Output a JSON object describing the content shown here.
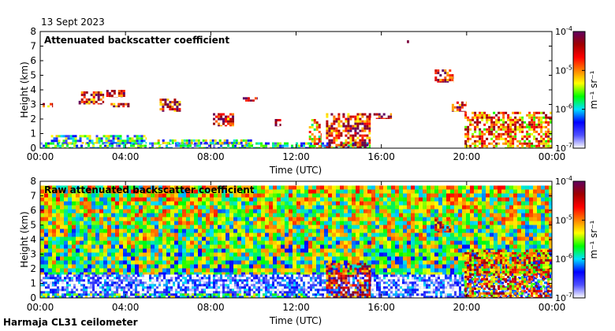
{
  "header": {
    "date": "13 Sept 2023"
  },
  "footer": {
    "site": "Harmaja CL31 ceilometer"
  },
  "chart_data": [
    {
      "type": "heatmap",
      "title": "Attenuated backscatter coefficient",
      "xlabel": "Time (UTC)",
      "ylabel": "Height (km)",
      "x_ticks": [
        "00:00",
        "04:00",
        "08:00",
        "12:00",
        "16:00",
        "20:00",
        "00:00"
      ],
      "xlim_hours": [
        0,
        24
      ],
      "y_ticks": [
        0,
        1,
        2,
        3,
        4,
        5,
        6,
        7,
        8
      ],
      "ylim": [
        0,
        8
      ],
      "colorbar": {
        "label": "m⁻¹ sr⁻¹",
        "scale": "log",
        "ticks": [
          "10",
          "10",
          "10",
          "10"
        ],
        "tick_exponents": [
          "-4",
          "-5",
          "-6",
          "-7"
        ],
        "range": [
          1e-07,
          0.0001
        ],
        "colors": [
          "#ffffff",
          "#5050ff",
          "#0000ff",
          "#00e0ff",
          "#00ff00",
          "#ffff00",
          "#ff8000",
          "#ff0000",
          "#a00000",
          "#600060"
        ]
      },
      "features": [
        {
          "name": "surface layer",
          "t0": 0.0,
          "t1": 15.5,
          "h_bottom": 0.0,
          "h_top": 0.4,
          "level": 0.32
        },
        {
          "name": "aerosol layer",
          "t0": 0.5,
          "t1": 5.0,
          "h_bottom": 0.3,
          "h_top": 0.9,
          "level": 0.38
        },
        {
          "name": "aerosol layer",
          "t0": 5.5,
          "t1": 10.0,
          "h_bottom": 0.25,
          "h_top": 0.6,
          "level": 0.42
        },
        {
          "name": "cloud",
          "t0": 0.0,
          "t1": 0.6,
          "h_bottom": 2.8,
          "h_top": 3.1,
          "level": 0.78
        },
        {
          "name": "cloud",
          "t0": 1.8,
          "t1": 3.0,
          "h_bottom": 3.0,
          "h_top": 3.9,
          "level": 0.8
        },
        {
          "name": "cloud",
          "t0": 3.1,
          "t1": 4.0,
          "h_bottom": 3.5,
          "h_top": 4.0,
          "level": 0.8
        },
        {
          "name": "cloud",
          "t0": 3.3,
          "t1": 4.2,
          "h_bottom": 2.8,
          "h_top": 3.1,
          "level": 0.75
        },
        {
          "name": "cloud",
          "t0": 5.6,
          "t1": 6.6,
          "h_bottom": 2.5,
          "h_top": 3.4,
          "level": 0.82
        },
        {
          "name": "cloud",
          "t0": 8.1,
          "t1": 9.1,
          "h_bottom": 1.5,
          "h_top": 2.4,
          "level": 0.8
        },
        {
          "name": "cloud",
          "t0": 9.5,
          "t1": 10.2,
          "h_bottom": 3.2,
          "h_top": 3.5,
          "level": 0.9
        },
        {
          "name": "cloud",
          "t0": 11.0,
          "t1": 11.3,
          "h_bottom": 1.5,
          "h_top": 2.0,
          "level": 0.78
        },
        {
          "name": "rain/precipitation",
          "t0": 12.6,
          "t1": 13.2,
          "h_bottom": 0.0,
          "h_top": 2.0,
          "level": 0.62
        },
        {
          "name": "rising cloud base",
          "t0": 13.4,
          "t1": 15.5,
          "h_bottom": 0.0,
          "h_top": 2.4,
          "level": 0.8
        },
        {
          "name": "cloud",
          "t0": 15.3,
          "t1": 16.5,
          "h_bottom": 2.0,
          "h_top": 2.4,
          "level": 0.8
        },
        {
          "name": "cloud",
          "t0": 17.2,
          "t1": 17.3,
          "h_bottom": 7.2,
          "h_top": 7.4,
          "level": 0.95
        },
        {
          "name": "cloud",
          "t0": 18.5,
          "t1": 19.4,
          "h_bottom": 4.5,
          "h_top": 5.4,
          "level": 0.85
        },
        {
          "name": "cloud",
          "t0": 19.3,
          "t1": 20.0,
          "h_bottom": 2.5,
          "h_top": 3.2,
          "level": 0.8
        },
        {
          "name": "low cloud deck",
          "t0": 19.9,
          "t1": 24.0,
          "h_bottom": 0.0,
          "h_top": 2.5,
          "level": 0.7
        }
      ]
    },
    {
      "type": "heatmap",
      "title": "Raw attenuated backscatter coefficient",
      "xlabel": "Time (UTC)",
      "ylabel": "Height (km)",
      "x_ticks": [
        "00:00",
        "04:00",
        "08:00",
        "12:00",
        "16:00",
        "20:00",
        "00:00"
      ],
      "xlim_hours": [
        0,
        24
      ],
      "y_ticks": [
        0,
        1,
        2,
        3,
        4,
        5,
        6,
        7,
        8
      ],
      "ylim": [
        0,
        8
      ],
      "colorbar": {
        "label": "m⁻¹ sr⁻¹",
        "scale": "log",
        "ticks": [
          "10",
          "10",
          "10",
          "10"
        ],
        "tick_exponents": [
          "-4",
          "-5",
          "-6",
          "-7"
        ],
        "range": [
          1e-07,
          0.0001
        ],
        "colors": [
          "#ffffff",
          "#5050ff",
          "#0000ff",
          "#00e0ff",
          "#00ff00",
          "#ffff00",
          "#ff8000",
          "#ff0000",
          "#a00000",
          "#600060"
        ]
      },
      "features": [
        {
          "name": "noise background",
          "t0": 0.0,
          "t1": 24.0,
          "h_bottom": 0.0,
          "h_top": 7.7,
          "level": 0.55
        },
        {
          "name": "low signal layer",
          "t0": 0.0,
          "t1": 24.0,
          "h_bottom": 0.0,
          "h_top": 1.6,
          "level": 0.1
        },
        {
          "name": "surface layer",
          "t0": 0.0,
          "t1": 12.5,
          "h_bottom": 0.0,
          "h_top": 0.3,
          "level": 0.4
        },
        {
          "name": "rising cloud base",
          "t0": 13.4,
          "t1": 15.5,
          "h_bottom": 0.0,
          "h_top": 2.4,
          "level": 0.8
        },
        {
          "name": "cloud",
          "t0": 18.5,
          "t1": 19.4,
          "h_bottom": 4.5,
          "h_top": 5.4,
          "level": 0.85
        },
        {
          "name": "low cloud deck",
          "t0": 19.9,
          "t1": 24.0,
          "h_bottom": 0.0,
          "h_top": 3.3,
          "level": 0.7
        }
      ]
    }
  ]
}
